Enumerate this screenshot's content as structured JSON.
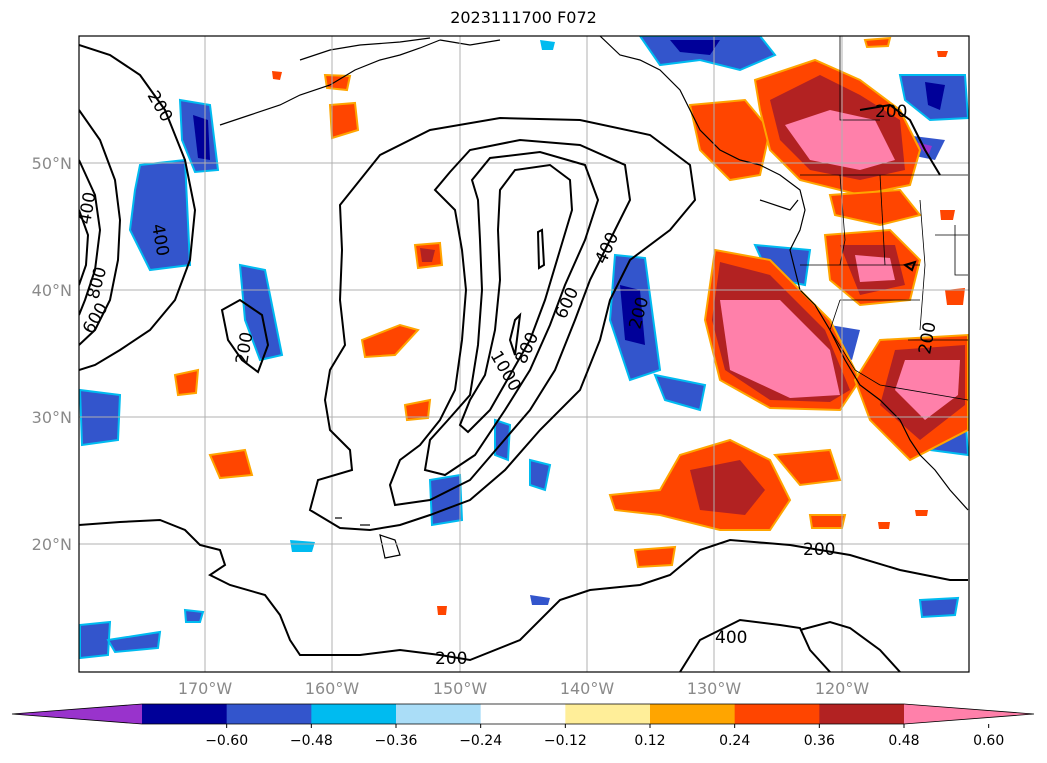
{
  "title": "2023111700 F072",
  "map": {
    "lat_labels": [
      "50°N",
      "40°N",
      "30°N",
      "20°N"
    ],
    "lon_labels": [
      "170°W",
      "160°W",
      "150°W",
      "140°W",
      "130°W",
      "120°W"
    ],
    "grid": true
  },
  "contours": {
    "color": "#000000",
    "labels": [
      {
        "text": "200"
      },
      {
        "text": "400"
      },
      {
        "text": "400"
      },
      {
        "text": "800"
      },
      {
        "text": "600"
      },
      {
        "text": "200"
      },
      {
        "text": "1000"
      },
      {
        "text": "800"
      },
      {
        "text": "600"
      },
      {
        "text": "400"
      },
      {
        "text": "200"
      },
      {
        "text": "200"
      },
      {
        "text": "200"
      },
      {
        "text": "200"
      },
      {
        "text": "400"
      },
      {
        "text": "200"
      }
    ]
  },
  "colorbar": {
    "colors": [
      "#9933cc",
      "#000099",
      "#3355cc",
      "#00bbf0",
      "#aaddf7",
      "#ffffff",
      "#ffee99",
      "#ffa500",
      "#ff4500",
      "#b22222",
      "#ff80aa"
    ],
    "ticks": [
      "−0.60",
      "−0.48",
      "−0.36",
      "−0.24",
      "−0.12",
      "0.12",
      "0.24",
      "0.36",
      "0.48",
      "0.60"
    ]
  }
}
